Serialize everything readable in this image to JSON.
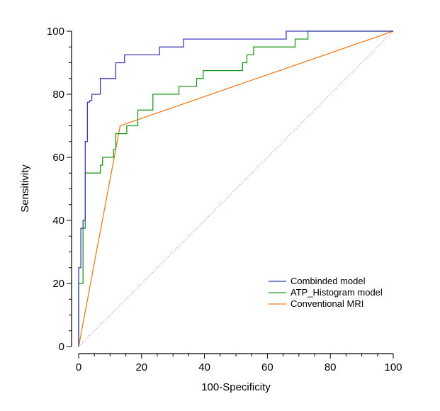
{
  "chart_data": {
    "type": "line",
    "title": "",
    "xlabel": "100-Specificity",
    "ylabel": "Sensitivity",
    "xlim": [
      0,
      100
    ],
    "ylim": [
      0,
      100
    ],
    "xticks": [
      "0",
      "20",
      "40",
      "60",
      "80",
      "100"
    ],
    "yticks": [
      "0",
      "20",
      "40",
      "60",
      "80",
      "100"
    ],
    "legend_position": "bottom-right",
    "series": [
      {
        "name": "Combinded model",
        "color": "#3b3bb8",
        "style": "step",
        "x": [
          0,
          0,
          0.7,
          0.7,
          1.4,
          1.4,
          2.1,
          2.1,
          2.8,
          2.8,
          3.5,
          3.5,
          4.2,
          4.2,
          4.9,
          4.9,
          6.9,
          6.9,
          7.6,
          7.6,
          11.8,
          11.8,
          13.2,
          13.2,
          14.6,
          14.6,
          25.7,
          25.7,
          33.3,
          33.3,
          66.0,
          66.0,
          72.9,
          72.9,
          100
        ],
        "y": [
          0,
          25.0,
          25.0,
          37.5,
          37.5,
          40.0,
          40.0,
          65.0,
          65.0,
          77.5,
          77.5,
          78.0,
          78.0,
          80.0,
          80.0,
          80.0,
          80.0,
          85.0,
          85.0,
          85.0,
          85.0,
          90.0,
          90.0,
          90.0,
          90.0,
          92.5,
          92.5,
          95.0,
          95.0,
          97.5,
          97.5,
          100,
          100,
          100,
          100
        ]
      },
      {
        "name": "ATP_Histogram model",
        "color": "#1f9a1f",
        "style": "step",
        "x": [
          0,
          0,
          1.4,
          1.4,
          2.1,
          2.1,
          6.9,
          6.9,
          7.6,
          7.6,
          9.0,
          9.0,
          11.1,
          11.1,
          11.8,
          11.8,
          15.3,
          15.3,
          18.8,
          18.8,
          23.6,
          23.6,
          31.9,
          31.9,
          37.5,
          37.5,
          39.6,
          39.6,
          52.1,
          52.1,
          53.5,
          53.5,
          55.6,
          55.6,
          68.8,
          68.8,
          72.9,
          72.9,
          100
        ],
        "y": [
          0,
          20.0,
          20.0,
          37.5,
          37.5,
          55.0,
          55.0,
          57.5,
          57.5,
          60.0,
          60.0,
          60.0,
          60.0,
          62.5,
          62.5,
          67.5,
          67.5,
          70.0,
          70.0,
          75.0,
          75.0,
          80.0,
          80.0,
          82.5,
          82.5,
          85.0,
          85.0,
          87.5,
          87.5,
          90.0,
          90.0,
          92.5,
          92.5,
          95.0,
          95.0,
          97.5,
          97.5,
          100,
          100
        ]
      },
      {
        "name": "Conventional MRI",
        "color": "#f07c1e",
        "style": "line",
        "x": [
          0,
          13.2,
          100
        ],
        "y": [
          0,
          70.0,
          100
        ]
      },
      {
        "name": "Reference line",
        "color": "#c98a9a",
        "style": "dotted",
        "x": [
          0,
          100
        ],
        "y": [
          0,
          100
        ]
      }
    ]
  }
}
